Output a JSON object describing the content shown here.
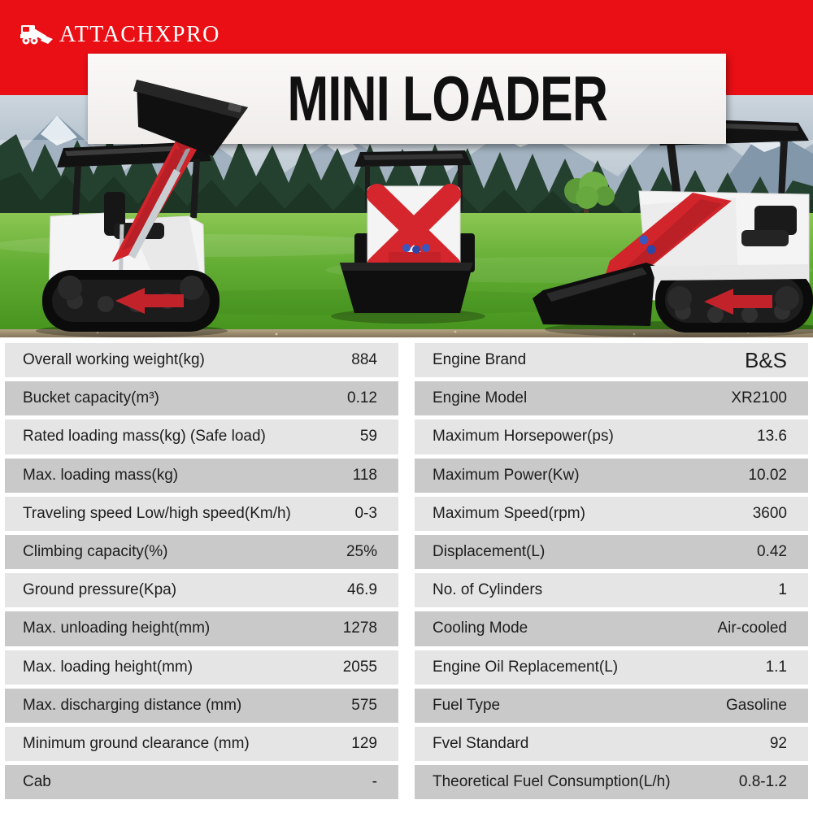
{
  "brand": {
    "logo_text": "ATTACHXPRO"
  },
  "hero": {
    "title": "MINI LOADER"
  },
  "colors": {
    "header_red": "#e90f15",
    "machine_red": "#d0232a",
    "row_light": "#e5e5e5",
    "row_dark": "#c9c9c9",
    "grass_green": "#5fa62e"
  },
  "spec_table": {
    "left": [
      {
        "label": "Overall working weight(kg)",
        "value": "884"
      },
      {
        "label": "Bucket capacity(m³)",
        "value": "0.12"
      },
      {
        "label": "Rated loading mass(kg) (Safe load)",
        "value": "59"
      },
      {
        "label": "Max. loading mass(kg)",
        "value": "118"
      },
      {
        "label": "Traveling speed Low/high speed(Km/h)",
        "value": "0-3"
      },
      {
        "label": "Climbing capacity(%)",
        "value": "25%"
      },
      {
        "label": "Ground pressure(Kpa)",
        "value": "46.9"
      },
      {
        "label": "Max. unloading height(mm)",
        "value": "1278"
      },
      {
        "label": "Max. loading height(mm)",
        "value": "2055"
      },
      {
        "label": "Max. discharging distance (mm)",
        "value": "575"
      },
      {
        "label": "Minimum ground clearance (mm)",
        "value": "129"
      },
      {
        "label": "Cab",
        "value": "-"
      }
    ],
    "right": [
      {
        "label": "Engine Brand",
        "value": "B&S",
        "emphasis": true
      },
      {
        "label": "Engine Model",
        "value": "XR2100"
      },
      {
        "label": "Maximum Horsepower(ps)",
        "value": "13.6"
      },
      {
        "label": "Maximum Power(Kw)",
        "value": "10.02"
      },
      {
        "label": "Maximum Speed(rpm)",
        "value": "3600"
      },
      {
        "label": "Displacement(L)",
        "value": "0.42"
      },
      {
        "label": "No. of Cylinders",
        "value": "1"
      },
      {
        "label": "Cooling Mode",
        "value": "Air-cooled"
      },
      {
        "label": "Engine Oil Replacement(L)",
        "value": "1.1"
      },
      {
        "label": "Fuel Type",
        "value": "Gasoline"
      },
      {
        "label": "Fvel Standard",
        "value": "92"
      },
      {
        "label": "Theoretical Fuel Consumption(L/h)",
        "value": "0.8-1.2"
      }
    ]
  }
}
